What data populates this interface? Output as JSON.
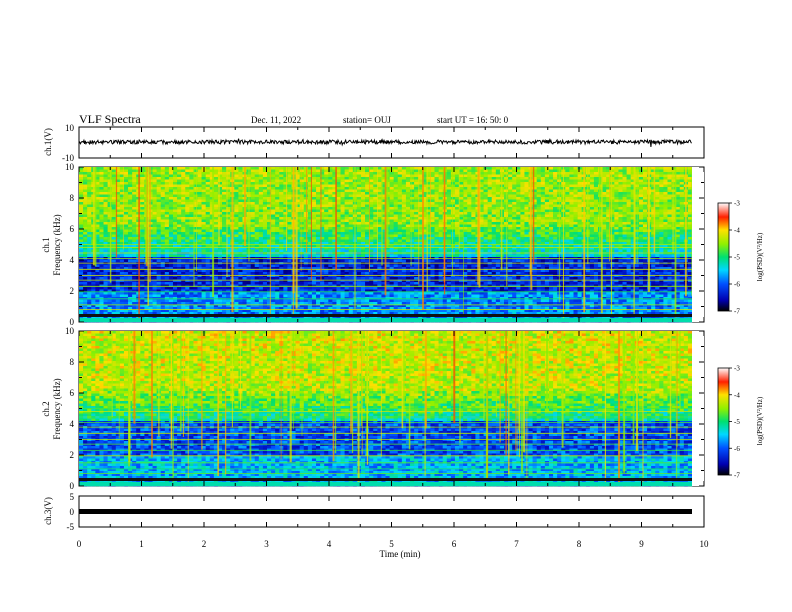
{
  "header": {
    "title": "VLF Spectra",
    "date": "Dec. 11, 2022",
    "station": "station= OUJ",
    "start": "start  UT  =   16: 50: 0"
  },
  "colors": {
    "trace": "#000000",
    "frame": "#000000"
  },
  "chart_data": [
    {
      "type": "line",
      "name": "ch1-waveform",
      "ylabel": "ch.1(V)",
      "ylim": [
        -10,
        10
      ],
      "yticks": [
        "10",
        "-10"
      ],
      "x": [
        0,
        1,
        2,
        3,
        4,
        5,
        6,
        7,
        8,
        9,
        9.8
      ],
      "y": [
        0,
        0,
        0,
        0,
        0,
        0,
        0,
        0,
        0,
        0,
        0
      ]
    },
    {
      "type": "heatmap",
      "name": "ch1-spectrogram",
      "ylabel_line1": "ch.1",
      "ylabel_line2": "Frequency  (kHz)",
      "ylim": [
        0,
        10
      ],
      "yticks": [
        "0",
        "2",
        "4",
        "6",
        "8",
        "10"
      ],
      "colorbar": {
        "label": "log(PSD)(V²/Hz)",
        "range": [
          -7,
          -3
        ],
        "ticks": [
          "-3",
          "-4",
          "-5",
          "-6",
          "-7"
        ]
      }
    },
    {
      "type": "heatmap",
      "name": "ch2-spectrogram",
      "ylabel_line1": "ch.2",
      "ylabel_line2": "Frequency  (kHz)",
      "ylim": [
        0,
        10
      ],
      "yticks": [
        "0",
        "2",
        "4",
        "6",
        "8",
        "10"
      ],
      "colorbar": {
        "label": "log(PSD)(V²/Hz)",
        "range": [
          -7,
          -3
        ],
        "ticks": [
          "-3",
          "-4",
          "-5",
          "-6",
          "-7"
        ]
      }
    },
    {
      "type": "line",
      "name": "ch3-waveform",
      "ylabel": "ch.3(V)",
      "ylim": [
        -5,
        5
      ],
      "yticks": [
        "5",
        "0",
        "-5"
      ],
      "x": [
        0,
        9.8
      ],
      "y": [
        0,
        0
      ]
    }
  ],
  "xaxis": {
    "label": "Time  (min)",
    "range": [
      0,
      10
    ],
    "ticks": [
      "0",
      "1",
      "2",
      "3",
      "4",
      "5",
      "6",
      "7",
      "8",
      "9",
      "10"
    ]
  }
}
